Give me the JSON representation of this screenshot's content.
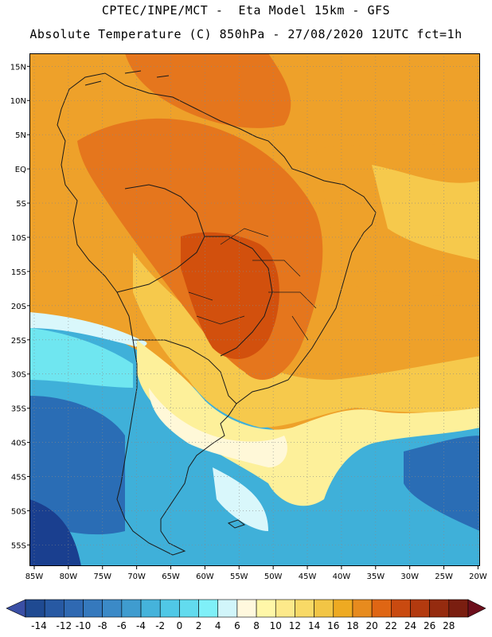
{
  "header": {
    "line1": "CPTEC/INPE/MCT -  Eta Model 15km - GFS",
    "line2": "Absolute Temperature (C) 850hPa - 27/08/2020 12UTC fct=1h"
  },
  "map": {
    "lat_labels": [
      "15N",
      "10N",
      "5N",
      "EQ",
      "5S",
      "10S",
      "15S",
      "20S",
      "25S",
      "30S",
      "35S",
      "40S",
      "45S",
      "50S",
      "55S"
    ],
    "lat_values": [
      15,
      10,
      5,
      0,
      -5,
      -10,
      -15,
      -20,
      -25,
      -30,
      -35,
      -40,
      -45,
      -50,
      -55
    ],
    "lon_labels": [
      "85W",
      "80W",
      "75W",
      "70W",
      "65W",
      "60W",
      "55W",
      "50W",
      "45W",
      "40W",
      "35W",
      "30W",
      "25W",
      "20W"
    ],
    "lon_values": [
      -85,
      -80,
      -75,
      -70,
      -65,
      -60,
      -55,
      -50,
      -45,
      -40,
      -35,
      -30,
      -25,
      -20
    ],
    "extent": {
      "lon_min": -85.7,
      "lon_max": -19.7,
      "lat_min": -58.1,
      "lat_max": 16.9
    },
    "field_colors": {
      "cold_deep": "#1a3f8f",
      "cold": "#2a6db5",
      "cool": "#3fb0d9",
      "mild": "#6fe6f0",
      "light": "#d9f7fb",
      "neutral": "#fff8d8",
      "warm_light": "#fdf09a",
      "warm": "#f6c94c",
      "hot": "#eea12a",
      "hotter": "#e5761d",
      "hottest": "#d2500d"
    }
  },
  "colorbar": {
    "tick_labels": [
      "-14",
      "-12",
      "-10",
      "-8",
      "-6",
      "-4",
      "-2",
      "0",
      "2",
      "4",
      "6",
      "8",
      "10",
      "12",
      "14",
      "16",
      "18",
      "20",
      "22",
      "24",
      "26",
      "28"
    ],
    "colors": [
      "#1f4a92",
      "#2759a3",
      "#2f69b2",
      "#3579bd",
      "#3b8ac7",
      "#3f9ccf",
      "#45b3db",
      "#50c8e6",
      "#62dbee",
      "#7ff0f8",
      "#d1f5fa",
      "#fff8de",
      "#fff7a8",
      "#fde98a",
      "#f8d966",
      "#f2c545",
      "#eeaa22",
      "#e78b1e",
      "#df6614",
      "#c94a10",
      "#b33a0f",
      "#952b0f",
      "#7a1e10"
    ],
    "min_color": "#3a4fa5",
    "max_color": "#6d0f1c"
  }
}
